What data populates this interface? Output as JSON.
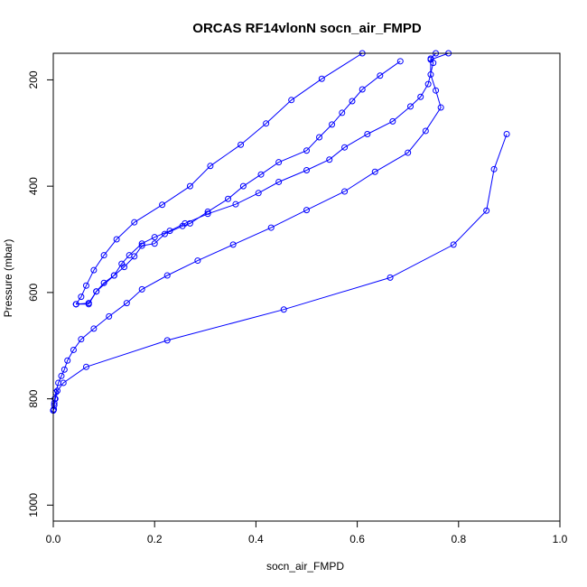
{
  "chart_data": {
    "type": "line",
    "title": "ORCAS RF14vlonN socn_air_FMPD",
    "xlabel": "socn_air_FMPD",
    "ylabel": "Pressure (mbar)",
    "xlim": [
      0,
      1
    ],
    "ylim": [
      1030,
      150
    ],
    "y_reversed": true,
    "x_ticks": [
      0.0,
      0.2,
      0.4,
      0.6,
      0.8,
      1.0
    ],
    "x_tick_labels": [
      "0.0",
      "0.2",
      "0.4",
      "0.6",
      "0.8",
      "1.0"
    ],
    "y_ticks": [
      200,
      400,
      600,
      800,
      1000
    ],
    "y_tick_labels": [
      "200",
      "400",
      "600",
      "800",
      "1000"
    ],
    "grid": false,
    "color": "#0000ff",
    "marker": "open-circle",
    "series": [
      {
        "points": [
          [
            0.61,
            150
          ],
          [
            0.53,
            198
          ],
          [
            0.47,
            238
          ],
          [
            0.42,
            282
          ],
          [
            0.37,
            322
          ],
          [
            0.31,
            362
          ],
          [
            0.27,
            400
          ],
          [
            0.215,
            435
          ],
          [
            0.16,
            468
          ],
          [
            0.125,
            500
          ],
          [
            0.1,
            530
          ],
          [
            0.08,
            558
          ],
          [
            0.065,
            587
          ],
          [
            0.055,
            608
          ],
          [
            0.045,
            622
          ]
        ]
      },
      {
        "points": [
          [
            0.685,
            165
          ],
          [
            0.645,
            192
          ],
          [
            0.61,
            218
          ],
          [
            0.59,
            240
          ],
          [
            0.57,
            262
          ],
          [
            0.55,
            284
          ],
          [
            0.525,
            308
          ],
          [
            0.5,
            333
          ],
          [
            0.445,
            355
          ],
          [
            0.41,
            378
          ],
          [
            0.375,
            400
          ],
          [
            0.345,
            424
          ],
          [
            0.305,
            448
          ],
          [
            0.27,
            470
          ],
          [
            0.255,
            475
          ],
          [
            0.22,
            490
          ],
          [
            0.2,
            508
          ],
          [
            0.175,
            512
          ],
          [
            0.16,
            532
          ],
          [
            0.14,
            552
          ],
          [
            0.12,
            568
          ],
          [
            0.085,
            598
          ],
          [
            0.07,
            622
          ],
          [
            0.045,
            622
          ]
        ]
      },
      {
        "points": [
          [
            0.755,
            150
          ],
          [
            0.745,
            160
          ],
          [
            0.75,
            168
          ],
          [
            0.74,
            208
          ],
          [
            0.725,
            232
          ],
          [
            0.705,
            250
          ],
          [
            0.67,
            278
          ],
          [
            0.62,
            302
          ],
          [
            0.575,
            327
          ],
          [
            0.545,
            350
          ],
          [
            0.5,
            370
          ],
          [
            0.445,
            392
          ],
          [
            0.405,
            413
          ],
          [
            0.36,
            434
          ],
          [
            0.305,
            452
          ],
          [
            0.26,
            470
          ],
          [
            0.23,
            484
          ],
          [
            0.2,
            496
          ],
          [
            0.175,
            508
          ],
          [
            0.15,
            530
          ],
          [
            0.135,
            546
          ],
          [
            0.12,
            568
          ],
          [
            0.1,
            582
          ],
          [
            0.085,
            598
          ],
          [
            0.07,
            620
          ],
          [
            0.045,
            622
          ]
        ]
      },
      {
        "points": [
          [
            0.78,
            150
          ],
          [
            0.745,
            162
          ],
          [
            0.745,
            190
          ],
          [
            0.755,
            220
          ],
          [
            0.765,
            252
          ],
          [
            0.735,
            296
          ],
          [
            0.7,
            337
          ],
          [
            0.635,
            373
          ],
          [
            0.575,
            410
          ],
          [
            0.5,
            445
          ],
          [
            0.43,
            478
          ],
          [
            0.355,
            510
          ],
          [
            0.285,
            540
          ],
          [
            0.225,
            568
          ],
          [
            0.175,
            594
          ],
          [
            0.145,
            620
          ],
          [
            0.11,
            645
          ],
          [
            0.08,
            668
          ],
          [
            0.055,
            688
          ],
          [
            0.04,
            708
          ],
          [
            0.028,
            728
          ],
          [
            0.022,
            745
          ],
          [
            0.016,
            757
          ],
          [
            0.01,
            770
          ],
          [
            0.005,
            788
          ],
          [
            0.003,
            800
          ],
          [
            0.002,
            808
          ],
          [
            0.001,
            820
          ],
          [
            0.0,
            822
          ]
        ]
      },
      {
        "points": [
          [
            0.895,
            302
          ],
          [
            0.87,
            368
          ],
          [
            0.855,
            446
          ],
          [
            0.79,
            510
          ],
          [
            0.665,
            572
          ],
          [
            0.455,
            632
          ],
          [
            0.225,
            690
          ],
          [
            0.065,
            740
          ],
          [
            0.02,
            770
          ],
          [
            0.008,
            785
          ],
          [
            0.004,
            800
          ],
          [
            0.002,
            812
          ],
          [
            0.001,
            820
          ],
          [
            0.0,
            822
          ]
        ]
      }
    ]
  }
}
